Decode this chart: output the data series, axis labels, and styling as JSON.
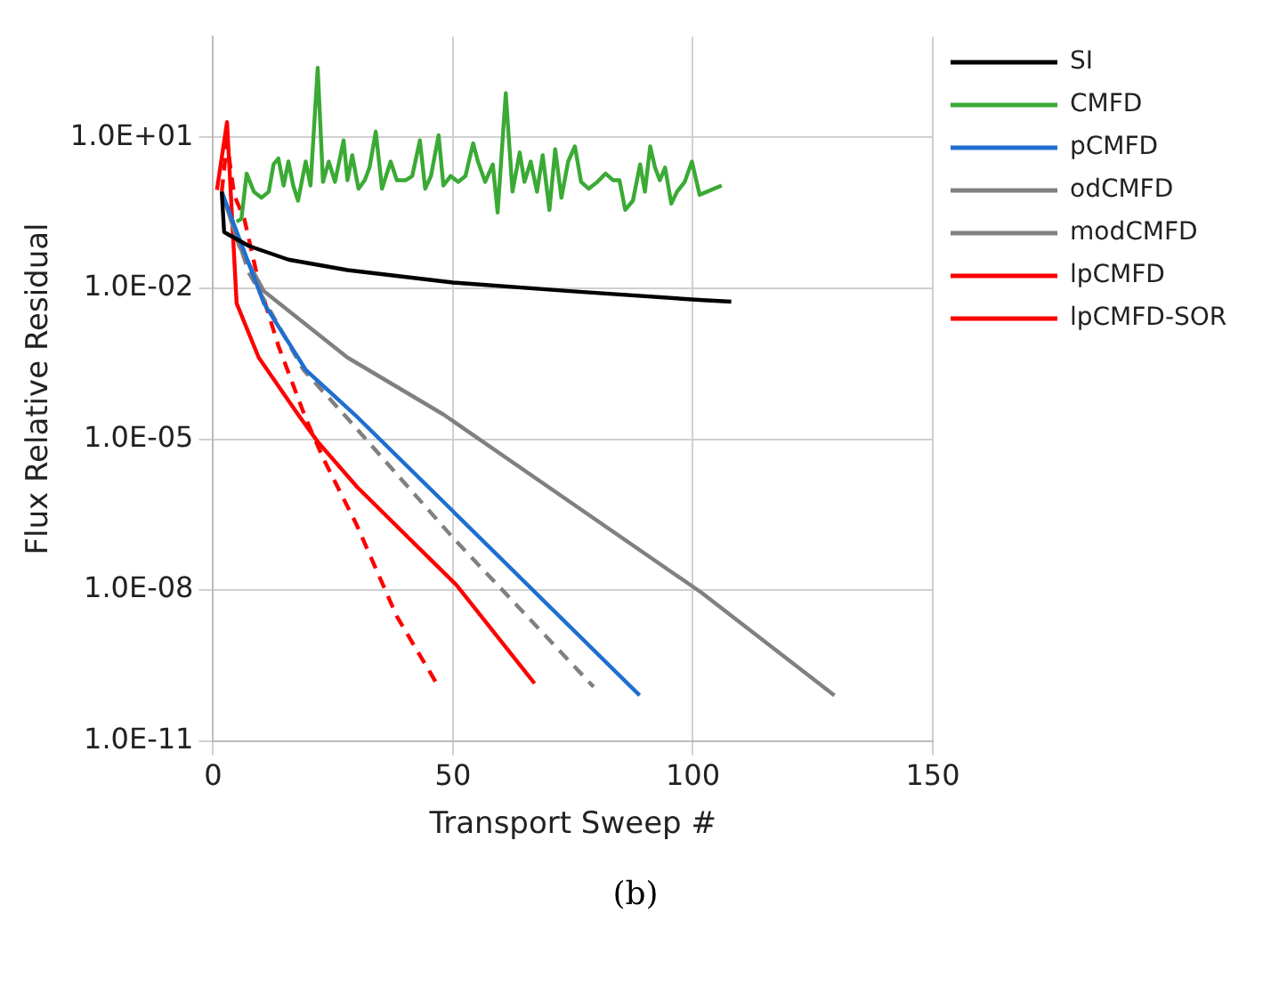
{
  "chart_data": {
    "type": "line",
    "xlabel": "Transport Sweep #",
    "ylabel": "Flux Relative Residual",
    "log": "y",
    "grid": true,
    "legend": "right",
    "marker": "none",
    "xlim": [
      0,
      150
    ],
    "xticks": [
      0,
      50,
      100,
      150
    ],
    "ylim": [
      1e-11,
      1000
    ],
    "yticks": [
      {
        "value": 10,
        "label": "1.0E+01"
      },
      {
        "value": 0.01,
        "label": "1.0E-02"
      },
      {
        "value": 1e-05,
        "label": "1.0E-05"
      },
      {
        "value": 1e-08,
        "label": "1.0E-08"
      },
      {
        "value": 1e-11,
        "label": "1.0E-11"
      }
    ],
    "annotations": [
      "(b)"
    ],
    "series": [
      {
        "name": "SI",
        "color": "#000000",
        "line_style": "solid",
        "x": [
          1.8,
          2.3,
          7.5,
          15.7,
          28,
          50,
          75,
          102,
          108
        ],
        "values": [
          0.83,
          0.13,
          0.069,
          0.037,
          0.023,
          0.013,
          0.0087,
          0.0058,
          0.0054
        ]
      },
      {
        "name": "CMFD",
        "color": "#3aaa35",
        "line_style": "solid",
        "x": [
          4.9,
          5.9,
          7.0,
          8.5,
          10.1,
          11.6,
          12.6,
          13.6,
          14.7,
          15.7,
          16.7,
          17.7,
          19.3,
          20.3,
          21.8,
          22.9,
          24.1,
          25.4,
          27.2,
          28.0,
          29.0,
          30.3,
          31.6,
          32.6,
          33.9,
          35.2,
          37.0,
          38.3,
          40.1,
          41.5,
          43.1,
          44.2,
          45.4,
          47.0,
          48.0,
          49.5,
          51.1,
          52.6,
          54.2,
          55.2,
          56.7,
          58.3,
          59.3,
          61.0,
          62.4,
          63.9,
          64.9,
          66.2,
          67.5,
          68.7,
          70.1,
          71.3,
          72.6,
          74.0,
          75.4,
          76.7,
          78.3,
          80.1,
          81.8,
          83.4,
          84.7,
          85.9,
          87.5,
          89.0,
          90.0,
          91.1,
          92.1,
          93.1,
          94.2,
          95.5,
          96.7,
          98.3,
          99.8,
          101.4,
          106
        ],
        "values": [
          0.21,
          0.24,
          1.9,
          0.83,
          0.63,
          0.83,
          2.9,
          3.8,
          1.1,
          3.3,
          1.1,
          0.55,
          3.3,
          1.1,
          240,
          1.3,
          3.3,
          1.3,
          8.7,
          1.4,
          4.4,
          0.95,
          1.4,
          2.5,
          13,
          0.95,
          3.3,
          1.4,
          1.4,
          1.7,
          8.7,
          0.95,
          1.7,
          11,
          1.1,
          1.7,
          1.3,
          1.7,
          7.6,
          3.3,
          1.3,
          2.9,
          0.32,
          75,
          0.83,
          5.0,
          1.3,
          3.3,
          0.83,
          4.4,
          0.36,
          5.8,
          0.63,
          3.3,
          6.6,
          1.3,
          0.95,
          1.3,
          1.9,
          1.4,
          1.4,
          0.36,
          0.55,
          2.9,
          0.83,
          6.6,
          2.5,
          1.4,
          2.5,
          0.48,
          0.83,
          1.3,
          3.3,
          0.72,
          1.1
        ]
      },
      {
        "name": "pCMFD",
        "color": "#1f6fd0",
        "line_style": "solid",
        "x": [
          1.8,
          5.4,
          10.6,
          19.3,
          29.5,
          50,
          88.9
        ],
        "values": [
          0.83,
          0.1,
          0.005,
          0.00024,
          3.1e-05,
          3.7e-07,
          8.1e-11
        ]
      },
      {
        "name": "odCMFD",
        "color": "#808080",
        "line_style": "solid",
        "x": [
          1.8,
          5.4,
          10.6,
          28,
          48,
          101.8,
          129.5
        ],
        "values": [
          0.83,
          0.07,
          0.0087,
          0.00042,
          3.1e-05,
          8.9e-09,
          8.1e-11
        ]
      },
      {
        "name": "modCMFD",
        "color": "#808080",
        "line_style": "dashed",
        "x": [
          1.8,
          7.5,
          18.8,
          28,
          50,
          79.3
        ],
        "values": [
          0.83,
          0.02,
          0.00024,
          2.6e-05,
          1.1e-07,
          1.2e-10
        ]
      },
      {
        "name": "lpCMFD",
        "color": "#ff0000",
        "line_style": "solid",
        "x": [
          0.8,
          2.9,
          4.9,
          9.5,
          17.7,
          21.8,
          30.1,
          50.6,
          67.0
        ],
        "values": [
          0.9,
          20,
          0.005,
          0.00042,
          3.1e-05,
          8.9e-06,
          1.1e-06,
          1.3e-08,
          1.4e-10
        ]
      },
      {
        "name": "lpCMFD-SOR",
        "color": "#ff0000",
        "line_style": "dashed",
        "x": [
          1.8,
          2.9,
          4.4,
          6.5,
          9.5,
          13.6,
          19.3,
          23.1,
          29.8,
          38.3,
          47.0
        ],
        "values": [
          0.83,
          8,
          0.7,
          0.24,
          0.013,
          0.00072,
          2.6e-05,
          3.9e-06,
          2.1e-07,
          3e-09,
          1.2e-10
        ]
      }
    ]
  }
}
